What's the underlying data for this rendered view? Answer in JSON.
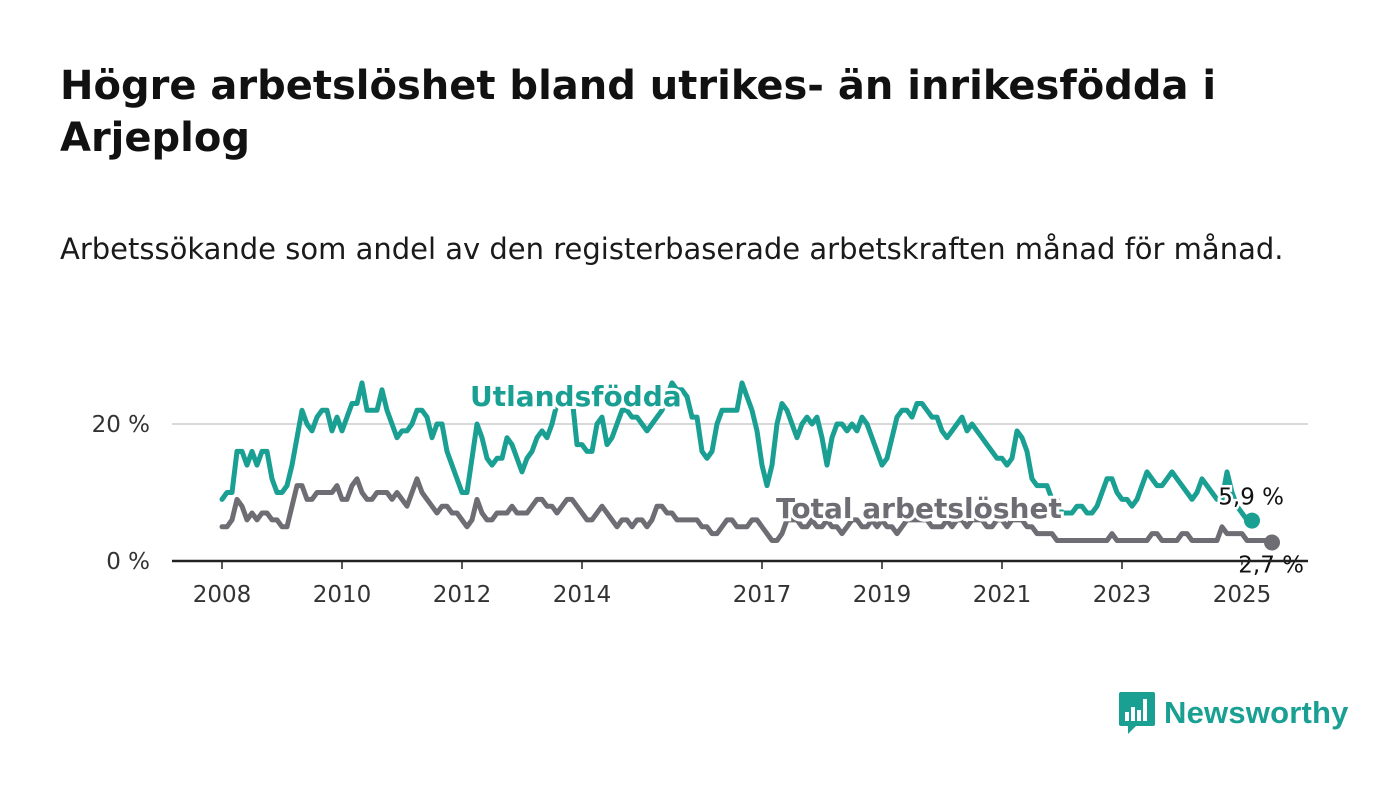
{
  "title": "Högre arbetslöshet bland utrikes- än inrikesfödda i Arjeplog",
  "subtitle": "Arbetssökande som andel av den registerbaserade arbetskraften månad för månad.",
  "brand": {
    "name": "Newsworthy",
    "icon": "newsworthy-logo-icon",
    "color": "#1a9f93"
  },
  "chart_data": {
    "type": "line",
    "x_start": "2008-01",
    "x_end": "2025-01",
    "x_ticks": [
      "2008",
      "2010",
      "2012",
      "2014",
      "2017",
      "2019",
      "2021",
      "2023",
      "2025"
    ],
    "y_ticks": [
      {
        "value": 0,
        "label": "0 %"
      },
      {
        "value": 20,
        "label": "20 %"
      }
    ],
    "ylim": [
      0,
      30
    ],
    "grid": true,
    "series": [
      {
        "name": "Utlandsfödda",
        "color": "#1a9f93",
        "end_label": "5,9 %",
        "values": [
          9,
          10,
          10,
          16,
          16,
          14,
          16,
          14,
          16,
          16,
          12,
          10,
          10,
          11,
          14,
          18,
          22,
          20,
          19,
          21,
          22,
          22,
          19,
          21,
          19,
          21,
          23,
          23,
          26,
          22,
          22,
          22,
          25,
          22,
          20,
          18,
          19,
          19,
          20,
          22,
          22,
          21,
          18,
          20,
          20,
          16,
          14,
          12,
          10,
          10,
          15,
          20,
          18,
          15,
          14,
          15,
          15,
          18,
          17,
          15,
          13,
          15,
          16,
          18,
          19,
          18,
          20,
          23,
          24,
          25,
          24,
          17,
          17,
          16,
          16,
          20,
          21,
          17,
          18,
          20,
          22,
          22,
          21,
          21,
          20,
          19,
          20,
          21,
          22,
          24,
          26,
          25,
          25,
          24,
          21,
          21,
          16,
          15,
          16,
          20,
          22,
          22,
          22,
          22,
          26,
          24,
          22,
          19,
          14,
          11,
          14,
          20,
          23,
          22,
          20,
          18,
          20,
          21,
          20,
          21,
          18,
          14,
          18,
          20,
          20,
          19,
          20,
          19,
          21,
          20,
          18,
          16,
          14,
          15,
          18,
          21,
          22,
          22,
          21,
          23,
          23,
          22,
          21,
          21,
          19,
          18,
          19,
          20,
          21,
          19,
          20,
          19,
          18,
          17,
          16,
          15,
          15,
          14,
          15,
          19,
          18,
          16,
          12,
          11,
          11,
          11,
          9,
          9,
          7,
          7,
          7,
          8,
          8,
          7,
          7,
          8,
          10,
          12,
          12,
          10,
          9,
          9,
          8,
          9,
          11,
          13,
          12,
          11,
          11,
          12,
          13,
          12,
          11,
          10,
          9,
          10,
          12,
          11,
          10,
          9,
          9,
          13,
          10,
          8,
          7,
          6,
          6
        ],
        "last_value": 5.9
      },
      {
        "name": "Total arbetslöshet",
        "color": "#6e6d74",
        "end_label": "2,7 %",
        "values": [
          5,
          5,
          6,
          9,
          8,
          6,
          7,
          6,
          7,
          7,
          6,
          6,
          5,
          5,
          8,
          11,
          11,
          9,
          9,
          10,
          10,
          10,
          10,
          11,
          9,
          9,
          11,
          12,
          10,
          9,
          9,
          10,
          10,
          10,
          9,
          10,
          9,
          8,
          10,
          12,
          10,
          9,
          8,
          7,
          8,
          8,
          7,
          7,
          6,
          5,
          6,
          9,
          7,
          6,
          6,
          7,
          7,
          7,
          8,
          7,
          7,
          7,
          8,
          9,
          9,
          8,
          8,
          7,
          8,
          9,
          9,
          8,
          7,
          6,
          6,
          7,
          8,
          7,
          6,
          5,
          6,
          6,
          5,
          6,
          6,
          5,
          6,
          8,
          8,
          7,
          7,
          6,
          6,
          6,
          6,
          6,
          5,
          5,
          4,
          4,
          5,
          6,
          6,
          5,
          5,
          5,
          6,
          6,
          5,
          4,
          3,
          3,
          4,
          6,
          6,
          6,
          5,
          5,
          6,
          5,
          5,
          6,
          5,
          5,
          4,
          5,
          6,
          6,
          5,
          5,
          6,
          5,
          6,
          5,
          5,
          4,
          5,
          6,
          6,
          6,
          6,
          6,
          5,
          5,
          5,
          6,
          5,
          6,
          6,
          5,
          6,
          6,
          6,
          5,
          5,
          6,
          6,
          5,
          6,
          6,
          6,
          5,
          5,
          4,
          4,
          4,
          4,
          3,
          3,
          3,
          3,
          3,
          3,
          3,
          3,
          3,
          3,
          3,
          4,
          3,
          3,
          3,
          3,
          3,
          3,
          3,
          4,
          4,
          3,
          3,
          3,
          3,
          4,
          4,
          3,
          3,
          3,
          3,
          3,
          3,
          5,
          4,
          4,
          4,
          4,
          3,
          3,
          3,
          3,
          3,
          3
        ],
        "last_value": 2.7
      }
    ]
  }
}
